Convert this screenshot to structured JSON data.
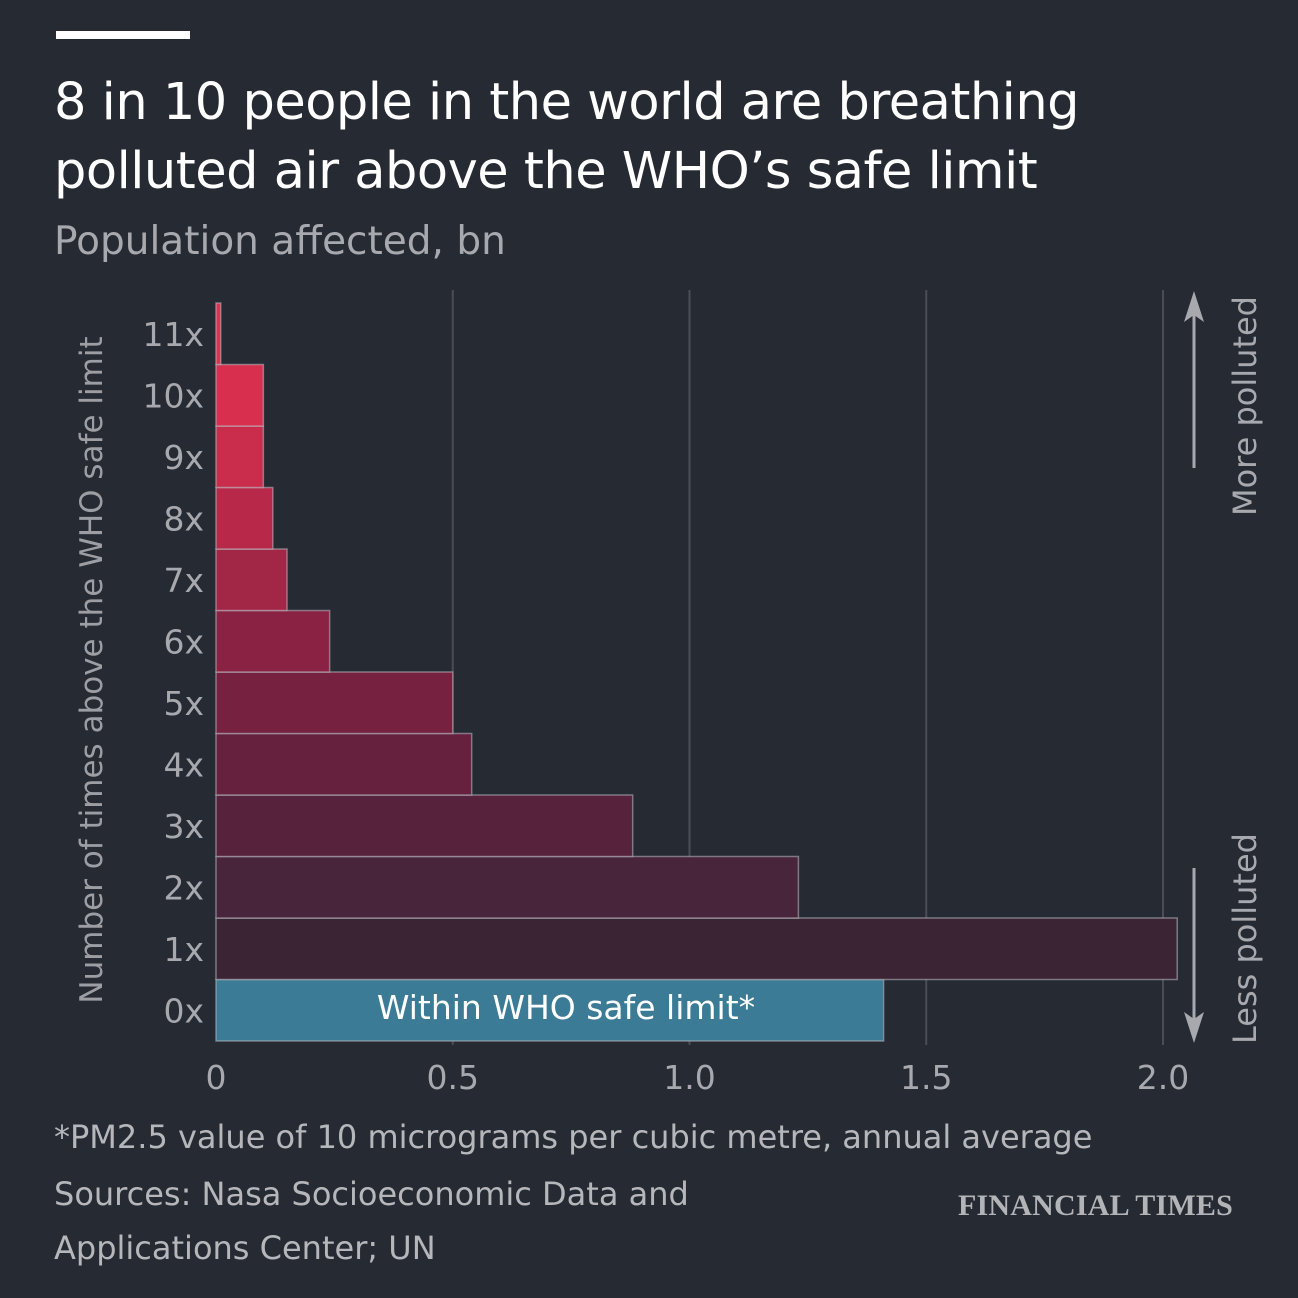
{
  "header": {
    "title": "8 in 10 people in the world are breathing polluted air above the WHO’s safe limit",
    "subtitle": "Population affected, bn"
  },
  "footer": {
    "note": "*PM2.5 value of 10 micrograms per cubic metre, annual average",
    "sources": "Sources: Nasa Socioeconomic Data and Applications Center; UN",
    "brand": "FINANCIAL TIMES"
  },
  "colors": {
    "background": "#262a33",
    "within_limit": "#3b7b95",
    "most_polluted": "#e0304f",
    "least_polluted": "#3b2434",
    "gridline": "#4a4d55"
  },
  "chart_data": {
    "type": "bar",
    "orientation": "horizontal",
    "title": "8 in 10 people in the world are breathing polluted air above the WHO’s safe limit",
    "subtitle": "Population affected, bn",
    "xlabel": "",
    "ylabel": "Number of times above the WHO safe limit",
    "categories": [
      "0x",
      "1x",
      "2x",
      "3x",
      "4x",
      "5x",
      "6x",
      "7x",
      "8x",
      "9x",
      "10x",
      "11x"
    ],
    "values": [
      1.41,
      2.03,
      1.23,
      0.88,
      0.54,
      0.5,
      0.24,
      0.15,
      0.12,
      0.1,
      0.1,
      0.01
    ],
    "xlim": [
      0,
      2.0
    ],
    "xticks": [
      "0",
      "0.5",
      "1.0",
      "1.5",
      "2.0"
    ],
    "grid": true,
    "annotations": {
      "within_label": "Within WHO safe limit*",
      "more_polluted": "More polluted",
      "less_polluted": "Less polluted"
    },
    "bar_colors": [
      "#3b7b95",
      "#3b2434",
      "#48253a",
      "#57223c",
      "#65213e",
      "#75213f",
      "#8a2343",
      "#a22645",
      "#b82848",
      "#ca2c4b",
      "#d82f4e",
      "#e0304f"
    ]
  }
}
